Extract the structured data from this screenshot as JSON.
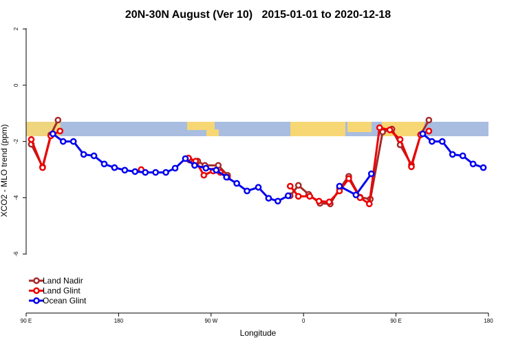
{
  "chart_data": {
    "type": "line",
    "title": "20N-30N August (Ver 10)   2015-01-01 to 2020-12-18",
    "xlabel": "Longitude",
    "ylabel": "XCO2 - MLO trend (ppm)",
    "xlim": [
      90,
      540
    ],
    "xticks": [
      {
        "value": 90,
        "label": "90 E"
      },
      {
        "value": 180,
        "label": "180"
      },
      {
        "value": 270,
        "label": "90 W"
      },
      {
        "value": 360,
        "label": "0"
      },
      {
        "value": 450,
        "label": "90 E"
      },
      {
        "value": 540,
        "label": "180"
      }
    ],
    "ylim": [
      -8.1,
      2.1
    ],
    "yticks": [
      2,
      0,
      -2,
      -4,
      -6
    ],
    "legend": "bottom-left",
    "series": [
      {
        "name": "Land Nadir",
        "color": "#a52a2a",
        "x": [
          95,
          106,
          114,
          121,
          null,
          249,
          257,
          264,
          277,
          286,
          null,
          347,
          355,
          365,
          376,
          386,
          395,
          404,
          415,
          425,
          437,
          446,
          454,
          465,
          474,
          482
        ],
        "values": [
          -2.1,
          -2.9,
          -1.76,
          -1.24,
          null,
          -2.66,
          -2.7,
          -2.85,
          -2.85,
          -3.2,
          null,
          -3.93,
          -3.56,
          -3.88,
          -4.2,
          -4.22,
          -3.68,
          -3.24,
          -3.98,
          -4.05,
          -1.66,
          -1.56,
          -2.12,
          -2.83,
          -1.76,
          -1.24
        ]
      },
      {
        "name": "Land Glint",
        "color": "#ee0000",
        "x": [
          95,
          106,
          114,
          123,
          null,
          202,
          null,
          248,
          255,
          263,
          272,
          279,
          286,
          null,
          347,
          355,
          366,
          375,
          385,
          395,
          404,
          415,
          424,
          434,
          444,
          454,
          465,
          474,
          482
        ],
        "values": [
          -1.93,
          -2.93,
          -1.8,
          -1.63,
          null,
          -3.0,
          null,
          -2.59,
          -2.7,
          -3.2,
          -3.05,
          -3.1,
          -3.27,
          null,
          -3.59,
          -3.95,
          -3.95,
          -4.12,
          -4.15,
          -3.76,
          -3.32,
          -4.0,
          -4.22,
          -1.51,
          -1.59,
          -1.93,
          -2.9,
          -1.76,
          -1.63
        ]
      },
      {
        "name": "Ocean Glint",
        "color": "#0000ee",
        "x": [
          116,
          126,
          136,
          146,
          156,
          166,
          176,
          186,
          196,
          206,
          216,
          226,
          235,
          245,
          254,
          265,
          275,
          285,
          295,
          305,
          316,
          326,
          335,
          345,
          null,
          395,
          411,
          426,
          null,
          476,
          485,
          495,
          505,
          515,
          525,
          535
        ],
        "values": [
          -1.73,
          -2.0,
          -2.0,
          -2.46,
          -2.51,
          -2.8,
          -2.93,
          -3.02,
          -3.07,
          -3.1,
          -3.1,
          -3.1,
          -2.95,
          -2.61,
          -2.85,
          -2.95,
          -3.02,
          -3.27,
          -3.49,
          -3.76,
          -3.63,
          -4.02,
          -4.12,
          -3.93,
          null,
          -3.59,
          -3.9,
          -3.15,
          null,
          -1.73,
          -2.0,
          -2.0,
          -2.46,
          -2.51,
          -2.8,
          -2.93
        ]
      }
    ]
  }
}
